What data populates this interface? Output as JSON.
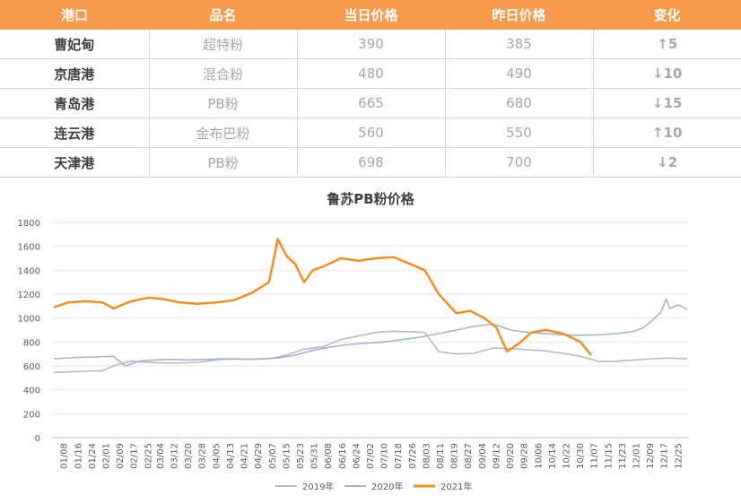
{
  "table": {
    "headers": [
      "港口",
      "品名",
      "当日价格",
      "昨日价格",
      "变化"
    ],
    "rows": [
      {
        "port": "曹妃甸",
        "product": "超特粉",
        "today": "390",
        "yesterday": "385",
        "arrow": "↑",
        "change": "5",
        "direction": "up"
      },
      {
        "port": "京唐港",
        "product": "混合粉",
        "today": "480",
        "yesterday": "490",
        "arrow": "↓",
        "change": "10",
        "direction": "down"
      },
      {
        "port": "青岛港",
        "product": "PB粉",
        "today": "665",
        "yesterday": "680",
        "arrow": "↓",
        "change": "15",
        "direction": "down"
      },
      {
        "port": "连云港",
        "product": "金布巴粉",
        "today": "560",
        "yesterday": "550",
        "arrow": "↑",
        "change": "10",
        "direction": "up"
      },
      {
        "port": "天津港",
        "product": "PB粉",
        "today": "698",
        "yesterday": "700",
        "arrow": "↓",
        "change": "2",
        "direction": "down"
      }
    ]
  },
  "colors": {
    "header_bg": "#f79a4a",
    "up": "#e00000",
    "down": "#00a04a"
  },
  "chart_data": {
    "type": "line",
    "title": "鲁苏PB粉价格",
    "xlabel": "",
    "ylabel": "",
    "ylim": [
      0,
      1800
    ],
    "yticks": [
      0,
      200,
      400,
      600,
      800,
      1000,
      1200,
      1400,
      1600,
      1800
    ],
    "xlim": [
      "01/01",
      "12/31"
    ],
    "xticks": [
      "01/08",
      "01/16",
      "01/24",
      "02/01",
      "02/09",
      "02/17",
      "02/25",
      "03/04",
      "03/12",
      "03/20",
      "03/28",
      "04/05",
      "04/13",
      "04/21",
      "04/29",
      "05/07",
      "05/15",
      "05/23",
      "05/31",
      "06/08",
      "06/16",
      "06/24",
      "07/02",
      "07/10",
      "07/18",
      "07/26",
      "08/03",
      "08/11",
      "08/19",
      "08/27",
      "09/04",
      "09/12",
      "09/20",
      "09/28",
      "10/06",
      "10/14",
      "10/22",
      "10/30",
      "11/07",
      "11/15",
      "11/23",
      "12/01",
      "12/09",
      "12/17",
      "12/25"
    ],
    "grid": true,
    "legend_position": "bottom",
    "series": [
      {
        "name": "2019年",
        "color": "#b9b9b9",
        "x": [
          "01/02",
          "01/10",
          "01/20",
          "01/30",
          "02/05",
          "02/10",
          "02/15",
          "02/25",
          "03/05",
          "03/15",
          "03/25",
          "04/05",
          "04/15",
          "04/25",
          "05/05",
          "05/15",
          "05/25",
          "06/05",
          "06/15",
          "06/25",
          "07/05",
          "07/15",
          "07/25",
          "08/02",
          "08/06",
          "08/10",
          "08/20",
          "08/30",
          "09/10",
          "09/20",
          "09/30",
          "10/10",
          "10/20",
          "10/30",
          "11/10",
          "11/20",
          "12/01",
          "12/10",
          "12/20",
          "12/30"
        ],
        "values": [
          545,
          550,
          555,
          560,
          600,
          620,
          640,
          630,
          625,
          625,
          630,
          650,
          660,
          655,
          660,
          690,
          740,
          760,
          820,
          850,
          880,
          890,
          885,
          880,
          800,
          720,
          700,
          705,
          750,
          745,
          735,
          725,
          705,
          680,
          635,
          640,
          650,
          660,
          665,
          660
        ]
      },
      {
        "name": "2020年",
        "color": "#9fb4d3",
        "x": [
          "01/02",
          "01/15",
          "01/25",
          "02/05",
          "02/12",
          "02/20",
          "03/01",
          "03/10",
          "03/20",
          "03/30",
          "04/10",
          "04/20",
          "04/30",
          "05/10",
          "05/20",
          "05/30",
          "06/10",
          "06/20",
          "06/30",
          "07/10",
          "07/20",
          "07/30",
          "08/10",
          "08/20",
          "08/30",
          "09/10",
          "09/20",
          "09/30",
          "10/10",
          "10/20",
          "10/30",
          "11/10",
          "11/20",
          "11/30",
          "12/05",
          "12/10",
          "12/15",
          "12/18",
          "12/20",
          "12/25",
          "12/30"
        ],
        "values": [
          660,
          670,
          675,
          680,
          600,
          640,
          650,
          655,
          650,
          655,
          660,
          655,
          660,
          665,
          690,
          730,
          760,
          780,
          790,
          800,
          820,
          840,
          870,
          900,
          930,
          950,
          900,
          880,
          870,
          860,
          855,
          860,
          870,
          890,
          920,
          980,
          1050,
          1160,
          1080,
          1110,
          1070
        ]
      },
      {
        "name": "2021年",
        "color": "#f28e1e",
        "x": [
          "01/02",
          "01/10",
          "01/20",
          "01/30",
          "02/05",
          "02/15",
          "02/25",
          "03/05",
          "03/15",
          "03/25",
          "04/05",
          "04/15",
          "04/25",
          "05/05",
          "05/10",
          "05/15",
          "05/20",
          "05/25",
          "05/30",
          "06/05",
          "06/15",
          "06/25",
          "07/05",
          "07/15",
          "07/25",
          "08/02",
          "08/10",
          "08/20",
          "08/28",
          "09/05",
          "09/12",
          "09/18",
          "09/25",
          "10/02",
          "10/10",
          "10/20",
          "10/30",
          "11/05"
        ],
        "values": [
          1090,
          1130,
          1140,
          1130,
          1080,
          1140,
          1170,
          1160,
          1130,
          1120,
          1130,
          1150,
          1210,
          1300,
          1660,
          1520,
          1450,
          1300,
          1400,
          1430,
          1500,
          1480,
          1500,
          1510,
          1450,
          1400,
          1200,
          1040,
          1060,
          1000,
          920,
          720,
          790,
          880,
          900,
          870,
          800,
          690
        ]
      }
    ]
  }
}
